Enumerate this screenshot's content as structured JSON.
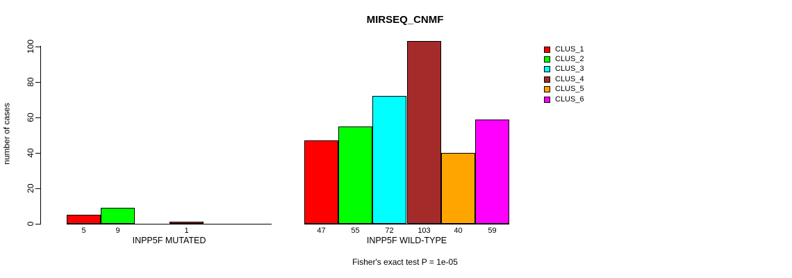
{
  "chart_data": {
    "type": "bar",
    "title": "MIRSEQ_CNMF",
    "ylabel": "number of cases",
    "ylim": [
      0,
      100
    ],
    "yticks": [
      0,
      20,
      40,
      60,
      80,
      100
    ],
    "grid": false,
    "legend_position": "right",
    "series": [
      {
        "name": "CLUS_1",
        "color": "#FF0000"
      },
      {
        "name": "CLUS_2",
        "color": "#00FF00"
      },
      {
        "name": "CLUS_3",
        "color": "#00FFFF"
      },
      {
        "name": "CLUS_4",
        "color": "#A52A2A"
      },
      {
        "name": "CLUS_5",
        "color": "#FFA500"
      },
      {
        "name": "CLUS_6",
        "color": "#FF00FF"
      }
    ],
    "groups": [
      {
        "label": "INPP5F MUTATED",
        "values": [
          5,
          9,
          0,
          1,
          0,
          0
        ]
      },
      {
        "label": "INPP5F WILD-TYPE",
        "values": [
          47,
          55,
          72,
          103,
          40,
          59
        ]
      }
    ],
    "value_label_rule": "shown under each bar only when value > 0",
    "footnote": "Fisher's exact test P = 1e-05"
  }
}
